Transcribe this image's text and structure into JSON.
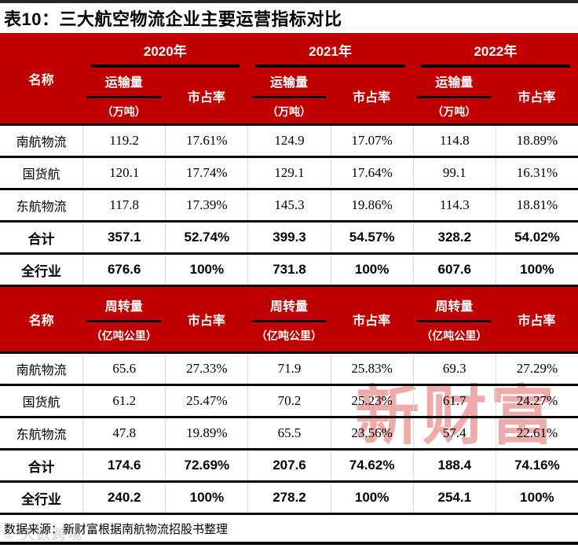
{
  "title": "表10：三大航空物流企业主要运营指标对比",
  "table": {
    "name_header": "名称",
    "share_header": "市占率",
    "years": [
      "2020年",
      "2021年",
      "2022年"
    ],
    "block1": {
      "metric": "运输量",
      "unit": "（万吨）",
      "rows": [
        {
          "cells": [
            "南航物流",
            "119.2",
            "17.61%",
            "124.9",
            "17.07%",
            "114.8",
            "18.89%"
          ]
        },
        {
          "cells": [
            "国货航",
            "120.1",
            "17.74%",
            "129.1",
            "17.64%",
            "99.1",
            "16.31%"
          ]
        },
        {
          "cells": [
            "东航物流",
            "117.8",
            "17.39%",
            "145.3",
            "19.86%",
            "114.3",
            "18.81%"
          ]
        },
        {
          "cells": [
            "合计",
            "357.1",
            "52.74%",
            "399.3",
            "54.57%",
            "328.2",
            "54.02%"
          ]
        },
        {
          "cells": [
            "全行业",
            "676.6",
            "100%",
            "731.8",
            "100%",
            "607.6",
            "100%"
          ]
        }
      ]
    },
    "block2": {
      "metric": "周转量",
      "unit": "（亿吨公里）",
      "rows": [
        {
          "cells": [
            "南航物流",
            "65.6",
            "27.33%",
            "71.9",
            "25.83%",
            "69.3",
            "27.29%"
          ]
        },
        {
          "cells": [
            "国货航",
            "61.2",
            "25.47%",
            "70.2",
            "25.23%",
            "61.7",
            "24.27%"
          ]
        },
        {
          "cells": [
            "东航物流",
            "47.8",
            "19.89%",
            "65.5",
            "23.56%",
            "57.4",
            "22.61%"
          ]
        },
        {
          "cells": [
            "合计",
            "174.6",
            "72.69%",
            "207.6",
            "74.62%",
            "188.4",
            "74.16%"
          ]
        },
        {
          "cells": [
            "全行业",
            "240.2",
            "100%",
            "278.2",
            "100%",
            "254.1",
            "100%"
          ]
        }
      ]
    }
  },
  "footer": {
    "source": "数据来源：新财富根据南航物流招股书整理"
  },
  "watermarks": {
    "center": "新财富",
    "corner": "© 大数跨境"
  },
  "colors": {
    "header_red": "#c00000",
    "line_black": "#000000",
    "grid_gray": "#d9d9d9",
    "watermark_pink": "#efaaaa"
  }
}
